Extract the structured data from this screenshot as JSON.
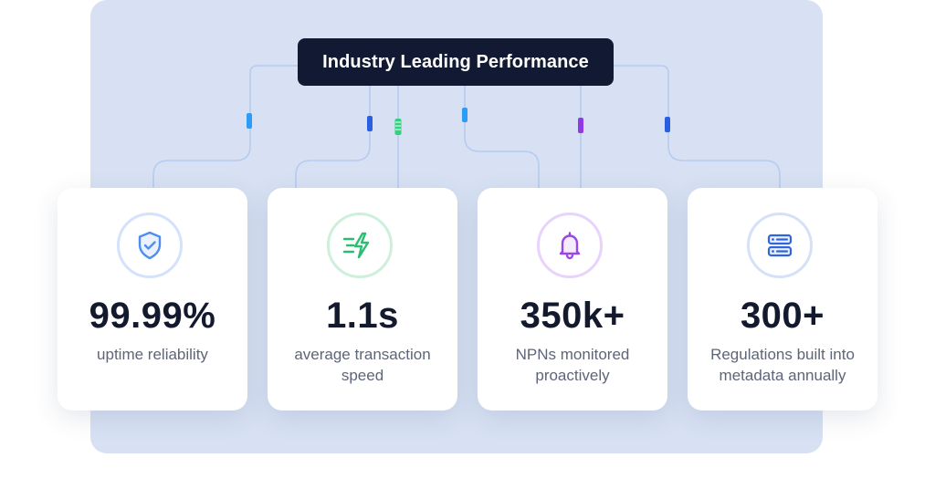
{
  "header": {
    "title": "Industry Leading Performance"
  },
  "stats": [
    {
      "value": "99.99%",
      "label": "uptime reliability",
      "icon": "shield-check-icon",
      "accent": "#4d8ef0"
    },
    {
      "value": "1.1s",
      "label": "average transaction speed",
      "icon": "lightning-speed-icon",
      "accent": "#2dbd72"
    },
    {
      "value": "350k+",
      "label": "NPNs monitored proactively",
      "icon": "bell-icon",
      "accent": "#9b46e8"
    },
    {
      "value": "300+",
      "label": "Regulations built into metadata annually",
      "icon": "server-icon",
      "accent": "#2f66e0"
    }
  ],
  "colors": {
    "panel_background": "#d7e1f3",
    "title_background": "#121a33",
    "connector_line": "#b7cbef"
  }
}
